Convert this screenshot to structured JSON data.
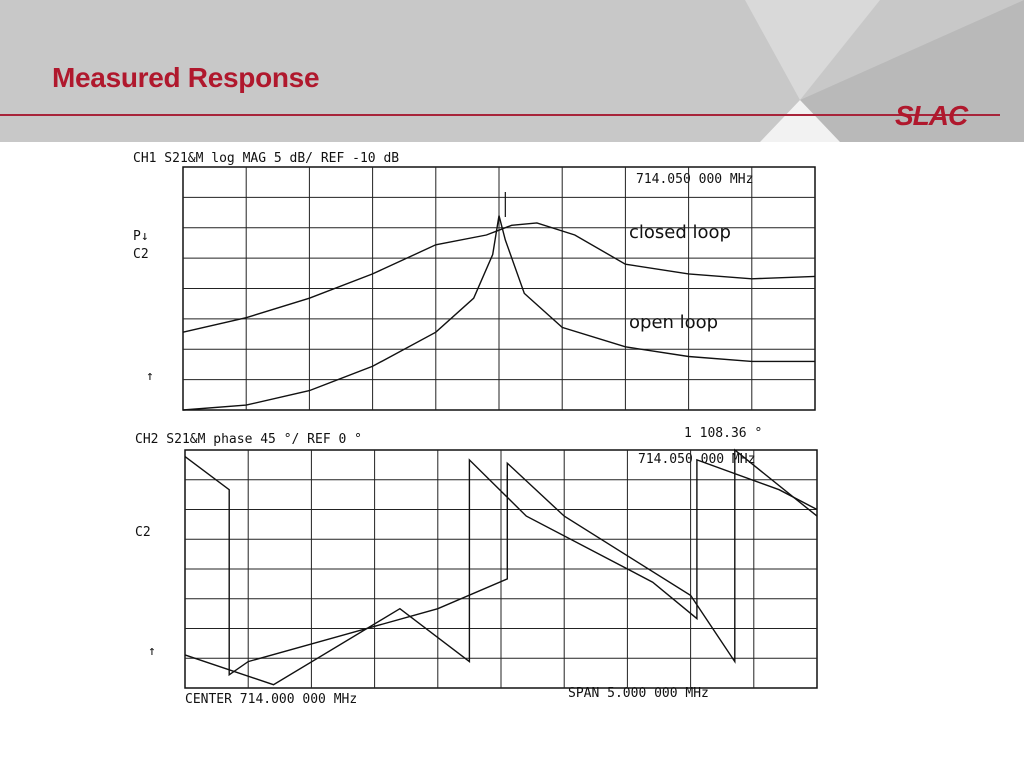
{
  "slide": {
    "title": "Measured Response",
    "logo": "SLAC",
    "colors": {
      "title": "#b0182d",
      "header_bg": "#c8c8c8",
      "rule": "#a8243a"
    }
  },
  "chart_data": [
    {
      "type": "line",
      "title": "",
      "header_text": "CH1 S21&M log MAG   5 dB/  REF -10 dB",
      "marker_readout": "714.050 000 MHz",
      "left_labels": [
        "P↓",
        "C2"
      ],
      "ref_arrow": "↑",
      "xlabel": "",
      "ylabel": "",
      "xlim": [
        711.5,
        716.5
      ],
      "ylim": [
        -60,
        -10
      ],
      "grid": true,
      "series": [
        {
          "name": "closed loop",
          "x": [
            711.5,
            712.0,
            712.5,
            713.0,
            713.5,
            713.9,
            714.0,
            714.1,
            714.3,
            714.6,
            715.0,
            715.5,
            716.0,
            716.5
          ],
          "y": [
            -44,
            -41,
            -37,
            -32,
            -26,
            -24,
            -23,
            -22,
            -21.5,
            -24,
            -30,
            -32,
            -33,
            -32.5
          ]
        },
        {
          "name": "open loop",
          "x": [
            711.5,
            712.0,
            712.5,
            713.0,
            713.5,
            713.8,
            713.95,
            714.0,
            714.05,
            714.2,
            714.5,
            715.0,
            715.5,
            716.0,
            716.5
          ],
          "y": [
            -60,
            -59,
            -56,
            -51,
            -44,
            -37,
            -28,
            -20,
            -25,
            -36,
            -43,
            -47,
            -49,
            -50,
            -50
          ]
        }
      ]
    },
    {
      "type": "line",
      "title": "",
      "header_text": "CH2 S21&M phase     45 °/  REF 0 °",
      "marker_value": "1  108.36 °",
      "marker_readout": "714.050 000 MHz",
      "left_labels": [
        "C2"
      ],
      "ref_arrow": "↑",
      "center_label": "CENTER  714.000 000 MHz",
      "span_label": "SPAN   5.000 000 MHz",
      "xlabel": "",
      "ylabel": "",
      "xlim": [
        711.5,
        716.5
      ],
      "ylim": [
        -180,
        180
      ],
      "grid": true,
      "series": [
        {
          "name": "",
          "x": [
            711.5,
            711.85,
            711.85,
            712.0,
            713.5,
            714.05,
            714.05,
            714.5,
            715.5,
            715.85,
            715.85,
            716.5
          ],
          "y": [
            170,
            120,
            -160,
            -140,
            -60,
            -15,
            160,
            80,
            -40,
            -140,
            180,
            80
          ]
        },
        {
          "name": "",
          "x": [
            711.5,
            712.2,
            713.2,
            713.75,
            713.75,
            714.2,
            715.2,
            715.55,
            715.55,
            716.2,
            716.5
          ],
          "y": [
            -130,
            -175,
            -60,
            -140,
            165,
            80,
            -20,
            -75,
            165,
            120,
            90
          ]
        }
      ]
    }
  ]
}
